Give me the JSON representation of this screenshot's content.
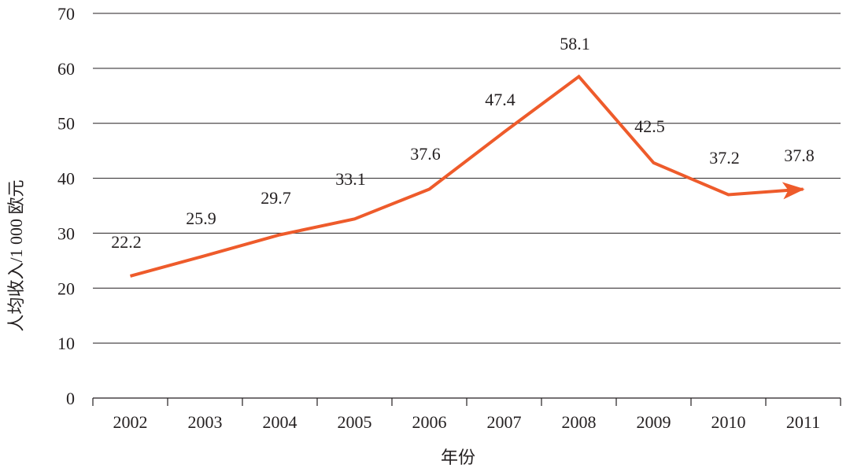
{
  "chart_data": {
    "type": "line",
    "title": "",
    "xlabel": "年份",
    "ylabel": "人均收入/1 000 欧元",
    "categories": [
      "2002",
      "2003",
      "2004",
      "2005",
      "2006",
      "2007",
      "2008",
      "2009",
      "2010",
      "2011"
    ],
    "values": [
      22.2,
      25.9,
      29.7,
      33.1,
      37.6,
      47.4,
      58.1,
      42.5,
      37.2,
      37.8
    ],
    "data_labels": [
      "22.2",
      "25.9",
      "29.7",
      "33.1",
      "37.6",
      "47.4",
      "58.1",
      "42.5",
      "37.2",
      "37.8"
    ],
    "line_points": [
      22.2,
      25.9,
      29.7,
      32.6,
      38.0,
      48.4,
      58.5,
      42.8,
      37.0,
      38.0
    ],
    "yticks": [
      0,
      10,
      20,
      30,
      40,
      50,
      60,
      70
    ],
    "ylim": [
      0,
      70
    ],
    "grid": true,
    "legend": "none",
    "line_color": "#ee5b2b",
    "grid_color": "#231f20",
    "end_marker": "arrow"
  }
}
